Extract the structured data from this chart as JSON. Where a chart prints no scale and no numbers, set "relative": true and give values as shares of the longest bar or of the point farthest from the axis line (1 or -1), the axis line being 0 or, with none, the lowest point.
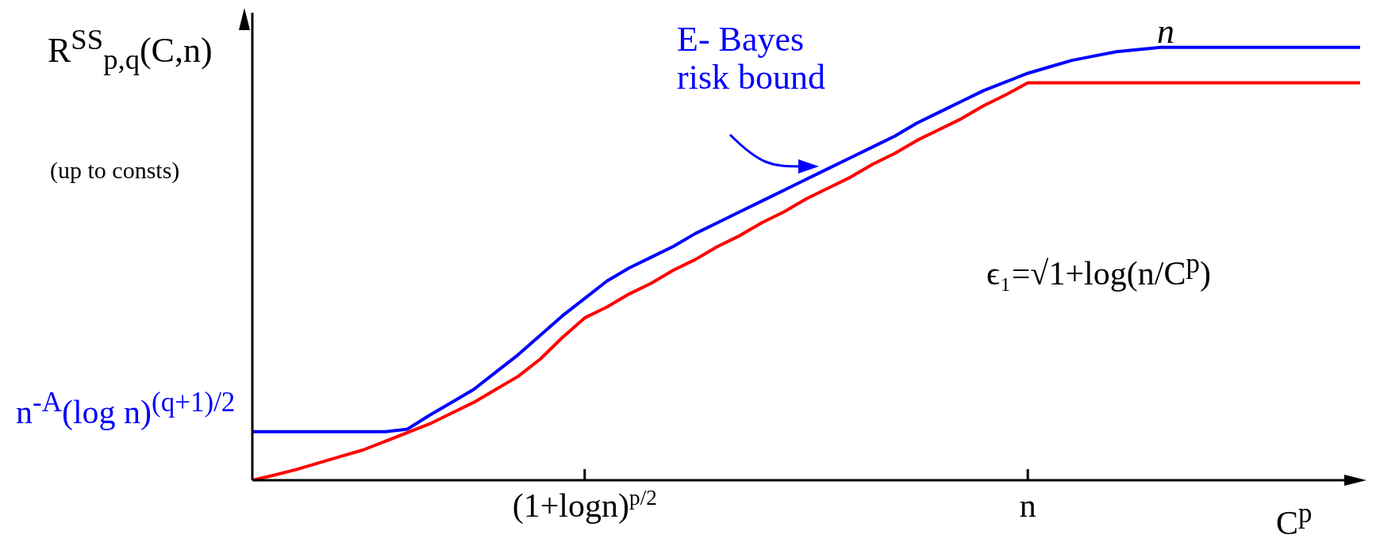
{
  "chart_data": {
    "type": "line",
    "relative": true,
    "xlabel": "C$^{p}$",
    "ylabel": "R$^{SS}$$_{p,q}$(C,n)",
    "annotations": [
      "E- Bayes risk bound",
      "n",
      "ϵ₁=√1+log(n/C$^{p}$)",
      "n$^{-A}$(log n)$^{(q+1)/2}$",
      "(up to consts)"
    ],
    "categories": [
      null,
      null,
      null,
      null,
      null,
      null,
      null,
      null,
      null,
      null,
      null,
      null,
      null,
      null,
      null,
      "(1+logn)$^{p/2}$",
      null,
      null,
      null,
      null,
      null,
      null,
      null,
      null,
      null,
      null,
      null,
      null,
      null,
      null,
      null,
      null,
      null,
      null,
      null,
      "n",
      null,
      null,
      null,
      null,
      null,
      null,
      null,
      null,
      null,
      null,
      null,
      null,
      null,
      null,
      null
    ],
    "series": [
      {
        "color": "#0000ff",
        "values": [
          0.112,
          0.112,
          0.112,
          0.112,
          0.112,
          0.112,
          0.112,
          0.118,
          0.15,
          0.18,
          0.21,
          0.25,
          0.29,
          0.335,
          0.38,
          0.42,
          0.46,
          0.49,
          0.515,
          0.54,
          0.57,
          0.595,
          0.62,
          0.645,
          0.67,
          0.695,
          0.72,
          0.745,
          0.77,
          0.795,
          0.825,
          0.85,
          0.875,
          0.9,
          0.92,
          0.94,
          0.955,
          0.97,
          0.98,
          0.99,
          0.995,
          1,
          1,
          1,
          1,
          1,
          1,
          1,
          1,
          1,
          1
        ]
      },
      {
        "color": "#ff0000",
        "values": [
          0,
          0.012,
          0.025,
          0.04,
          0.055,
          0.07,
          0.09,
          0.11,
          0.13,
          0.155,
          0.18,
          0.21,
          0.24,
          0.28,
          0.33,
          0.375,
          0.4,
          0.43,
          0.455,
          0.485,
          0.51,
          0.54,
          0.565,
          0.595,
          0.62,
          0.65,
          0.675,
          0.7,
          0.73,
          0.755,
          0.785,
          0.81,
          0.835,
          0.865,
          0.89,
          0.918,
          0.918,
          0.918,
          0.918,
          0.918,
          0.918,
          0.918,
          0.918,
          0.918,
          0.918,
          0.918,
          0.918,
          0.918,
          0.918,
          0.918,
          0.918
        ]
      }
    ],
    "marker": "none",
    "line_style": "solid"
  }
}
